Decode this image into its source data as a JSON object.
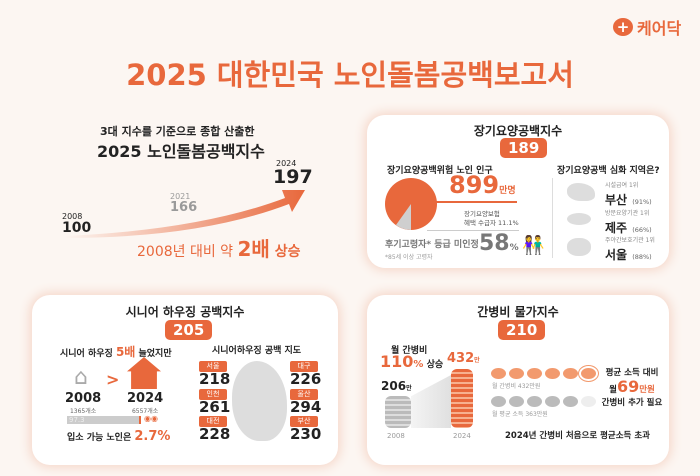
{
  "brand": {
    "name": "케어닥",
    "icon": "plus-icon",
    "color": "#e8683c"
  },
  "title": "2025 대한민국 노인돌봄공백보고서",
  "hero": {
    "subtitle": "3대 지수를 기준으로 종합 산출한",
    "title": "2025 노인돌봄공백지수",
    "points": [
      {
        "year": "2008",
        "value": "100"
      },
      {
        "year": "2021",
        "value": "166"
      },
      {
        "year": "2024",
        "value": "197"
      }
    ],
    "summary_pre": "2008년 대비 약 ",
    "summary_bold": "2배",
    "summary_post": " 상승"
  },
  "ltc": {
    "title": "장기요양공백지수",
    "index": "189",
    "risk_title": "장기요양공백위험 노인 인구",
    "pop": "899",
    "pop_unit": "만명",
    "benefit_label1": "장기요양보험",
    "benefit_label2": "혜택 수급자  11.1%",
    "benefit_fraction": 0.111,
    "unassessed_label": "후기고령자* 등급 미인정",
    "unassessed_value": "58",
    "unassessed_unit": "%",
    "footnote": "*85세 이상 고령자",
    "regions_title": "장기요양공백 심화 지역은?",
    "regions": [
      {
        "label": "시설급여 1위",
        "name": "부산",
        "pct": "(91%)"
      },
      {
        "label": "방문요양기관 1위",
        "name": "제주",
        "pct": "(66%)"
      },
      {
        "label": "주야간보호기관 1위",
        "name": "서울",
        "pct": "(88%)"
      }
    ]
  },
  "housing": {
    "title": "시니어 하우징 공백지수",
    "index": "205",
    "growth_pre": "시니어 하우징 ",
    "growth_bold": "5배",
    "growth_post": " 늘었지만",
    "y2008": "2008",
    "c2008": "1365개소",
    "y2024": "2024",
    "c2024": "6557개소",
    "bar_value": "97.3",
    "bar_fraction": 0.973,
    "avail_pre": "입소 가능 노인은 ",
    "avail_value": "2.7%",
    "map_title": "시니어하우징 공백 지도",
    "cities": [
      {
        "name": "서울",
        "value": "218"
      },
      {
        "name": "인천",
        "value": "261"
      },
      {
        "name": "대전",
        "value": "228"
      },
      {
        "name": "대구",
        "value": "226"
      },
      {
        "name": "울산",
        "value": "294"
      },
      {
        "name": "부산",
        "value": "230"
      }
    ]
  },
  "care": {
    "title": "간병비 물가지수",
    "index": "210",
    "monthly_label": "월 간병비",
    "rise": "110",
    "rise_unit": "%",
    "rise_post": " 상승",
    "v2008": "206",
    "v2024": "432",
    "unit": "만",
    "x2008": "2008",
    "x2024": "2024",
    "row1_label": "월 간병비 432만원",
    "row2_label": "월 평균 소득 363만원",
    "extra1": "평균 소득 대비",
    "extra_pre": "월",
    "extra_value": "69",
    "extra_unit": "만원",
    "extra2": "간병비 추가 필요",
    "footer": "2024년 간병비 처음으로 평균소득 초과"
  }
}
